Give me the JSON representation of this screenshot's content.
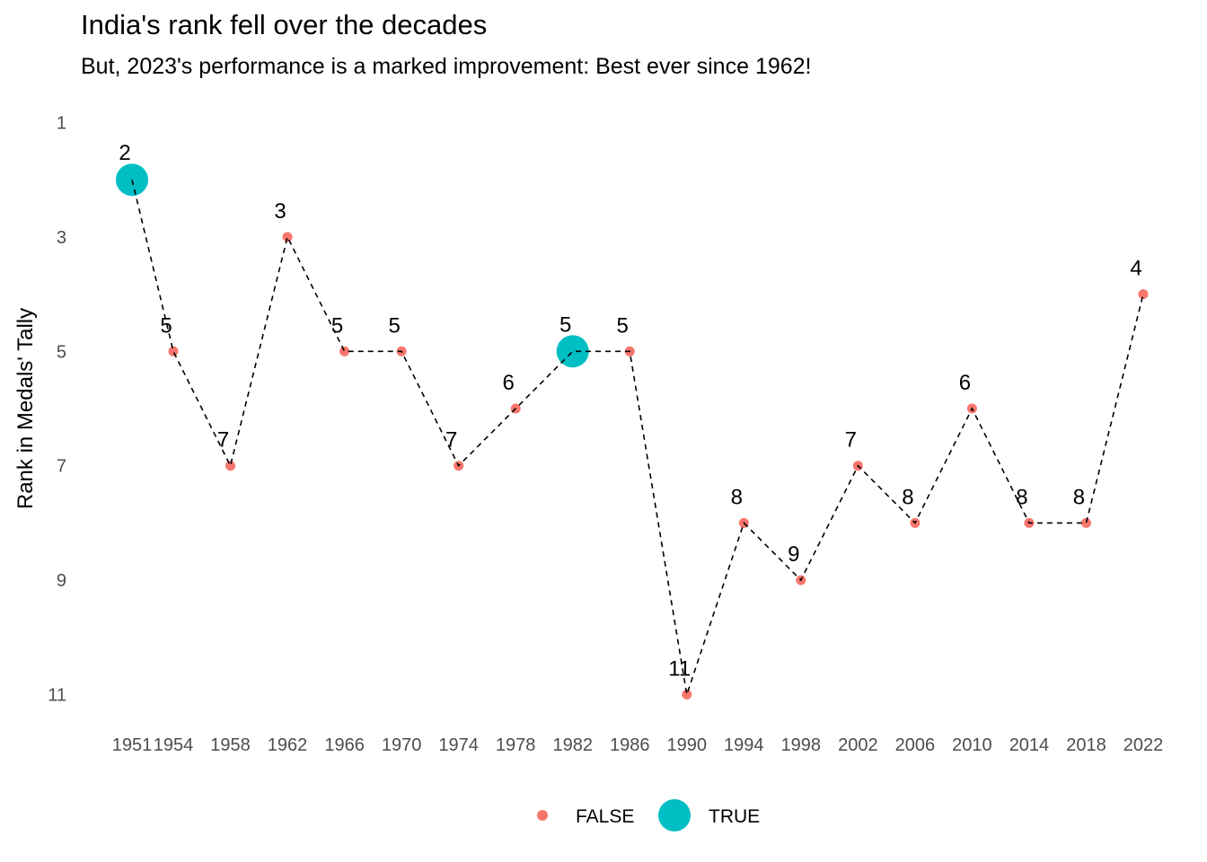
{
  "chart_data": {
    "type": "line",
    "title": "India's rank fell over the decades",
    "subtitle": "But, 2023's performance is a marked improvement: Best ever since 1962!",
    "xlabel": "",
    "ylabel": "Rank in Medals' Tally",
    "y_reversed": true,
    "ylim": [
      11,
      1
    ],
    "y_ticks": [
      1,
      3,
      5,
      7,
      9,
      11
    ],
    "categories": [
      "1951",
      "1954",
      "1958",
      "1962",
      "1966",
      "1970",
      "1974",
      "1978",
      "1982",
      "1986",
      "1990",
      "1994",
      "1998",
      "2002",
      "2006",
      "2010",
      "2014",
      "2018",
      "2022"
    ],
    "values": [
      2,
      5,
      7,
      3,
      5,
      5,
      7,
      6,
      5,
      5,
      11,
      8,
      9,
      7,
      8,
      6,
      8,
      8,
      4
    ],
    "highlight": [
      true,
      false,
      false,
      false,
      false,
      false,
      false,
      false,
      true,
      false,
      false,
      false,
      false,
      false,
      false,
      false,
      false,
      false,
      false
    ],
    "line_style": "dashed",
    "grid": false,
    "legend": {
      "position": "bottom",
      "entries": [
        {
          "label": "FALSE",
          "color": "#F8766D"
        },
        {
          "label": "TRUE",
          "color": "#00BFC4"
        }
      ]
    },
    "colors": {
      "false": "#F8766D",
      "true": "#00BFC4",
      "line": "#000000"
    }
  }
}
